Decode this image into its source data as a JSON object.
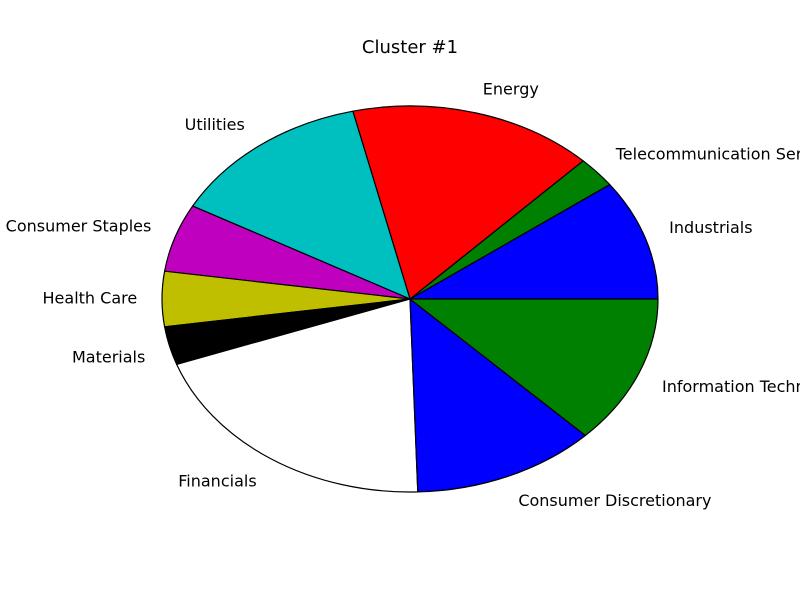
{
  "chart_data": {
    "type": "pie",
    "title": "Cluster #1",
    "slices": [
      {
        "label": "Industrials",
        "value": 10.1,
        "color": "#0000ff"
      },
      {
        "label": "Telecommunication Services",
        "value": 2.6,
        "color": "#008000"
      },
      {
        "label": "Energy",
        "value": 16.0,
        "color": "#ff0000"
      },
      {
        "label": "Utilities",
        "value": 13.3,
        "color": "#00bfbf"
      },
      {
        "label": "Consumer Staples",
        "value": 5.7,
        "color": "#bf00bf"
      },
      {
        "label": "Health Care",
        "value": 4.6,
        "color": "#bfbf00"
      },
      {
        "label": "Materials",
        "value": 3.2,
        "color": "#000000"
      },
      {
        "label": "Financials",
        "value": 20.0,
        "color": "#ffffff"
      },
      {
        "label": "Consumer Discretionary",
        "value": 12.0,
        "color": "#0000ff"
      },
      {
        "label": "Information Technology",
        "value": 12.5,
        "color": "#008000"
      }
    ],
    "start_angle_deg": 0,
    "direction": "counterclockwise",
    "legend": "none"
  }
}
